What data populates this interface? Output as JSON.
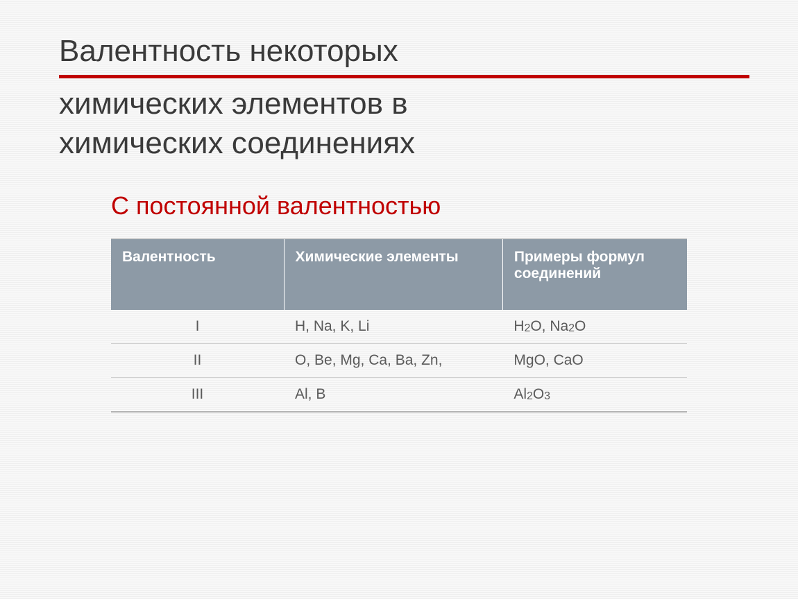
{
  "title": {
    "line1": "Валентность некоторых",
    "line2": "химических элементов в",
    "line3": "химических соединениях"
  },
  "subtitle": "С постоянной валентностью",
  "table": {
    "columns": [
      "Валентность",
      "Химические элементы",
      "Примеры формул соединений"
    ],
    "rows": [
      {
        "valency": "I",
        "elements": "H, Na, K, Li",
        "examples_html": "H<sub>2</sub>O, Na<sub>2</sub>O"
      },
      {
        "valency": "II",
        "elements": "O, Be, Mg, Ca, Ba, Zn,",
        "examples_html": "MgO, CaO"
      },
      {
        "valency": "III",
        "elements": "Al, B",
        "examples_html": "Al<sub>2</sub>O<sub>3</sub>"
      }
    ]
  },
  "styling": {
    "title_color": "#3a3a3a",
    "title_fontsize": 44,
    "divider_color": "#c00000",
    "subtitle_color": "#c00000",
    "subtitle_fontsize": 36,
    "header_bg": "#8d9aa6",
    "header_text_color": "#ffffff",
    "body_text_color": "#5a5a5a",
    "cell_fontsize": 21,
    "background_stripe_colors": [
      "#efefef",
      "#f8f8f8"
    ],
    "col_widths": [
      "30%",
      "38%",
      "32%"
    ]
  }
}
